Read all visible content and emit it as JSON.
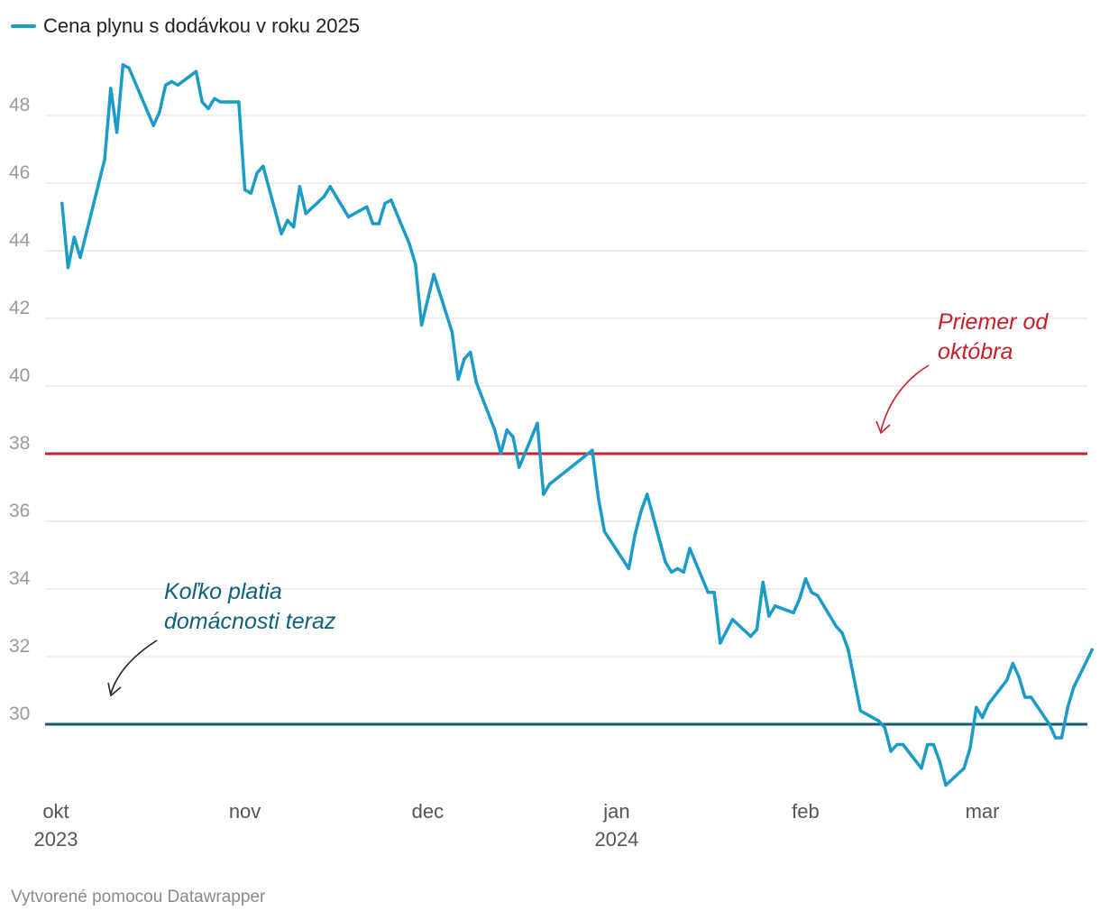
{
  "colors": {
    "series": "#1a9bc8",
    "average_line": "#c8202a",
    "current_line": "#11607a",
    "grid": "#dddddd",
    "tick_text": "#9a9a9a"
  },
  "legend": {
    "label": "Cena plynu s dodávkou v roku 2025"
  },
  "footer": {
    "credit": "Vytvorené pomocou Datawrapper"
  },
  "annotations": {
    "average": {
      "line1": "Priemer od",
      "line2": "októbra"
    },
    "current": {
      "line1": "Koľko platia",
      "line2": "domácnosti teraz"
    }
  },
  "chart_data": {
    "type": "line",
    "title": "",
    "xlabel": "",
    "ylabel": "",
    "ylim": [
      28,
      50
    ],
    "yticks": [
      30,
      32,
      34,
      36,
      38,
      40,
      42,
      44,
      46,
      48
    ],
    "grid": true,
    "legend_position": "top-left",
    "xticks": [
      {
        "date": "2023-10-01",
        "label": "okt",
        "sublabel": "2023"
      },
      {
        "date": "2023-11-01",
        "label": "nov",
        "sublabel": ""
      },
      {
        "date": "2023-12-01",
        "label": "dec",
        "sublabel": ""
      },
      {
        "date": "2024-01-01",
        "label": "jan",
        "sublabel": "2024"
      },
      {
        "date": "2024-02-01",
        "label": "feb",
        "sublabel": ""
      },
      {
        "date": "2024-03-01",
        "label": "mar",
        "sublabel": ""
      }
    ],
    "reference_lines": [
      {
        "name": "Priemer od októbra",
        "y": 38
      },
      {
        "name": "Koľko platia domácnosti teraz",
        "y": 30
      }
    ],
    "series": [
      {
        "name": "Cena plynu s dodávkou v roku 2025",
        "points": [
          [
            "2023-10-02",
            45.4
          ],
          [
            "2023-10-03",
            43.5
          ],
          [
            "2023-10-04",
            44.4
          ],
          [
            "2023-10-05",
            43.8
          ],
          [
            "2023-10-09",
            46.7
          ],
          [
            "2023-10-10",
            48.8
          ],
          [
            "2023-10-11",
            47.5
          ],
          [
            "2023-10-12",
            49.5
          ],
          [
            "2023-10-13",
            49.4
          ],
          [
            "2023-10-17",
            47.7
          ],
          [
            "2023-10-18",
            48.1
          ],
          [
            "2023-10-19",
            48.9
          ],
          [
            "2023-10-20",
            49.0
          ],
          [
            "2023-10-21",
            48.9
          ],
          [
            "2023-10-24",
            49.3
          ],
          [
            "2023-10-25",
            48.4
          ],
          [
            "2023-10-26",
            48.2
          ],
          [
            "2023-10-27",
            48.5
          ],
          [
            "2023-10-28",
            48.4
          ],
          [
            "2023-10-31",
            48.4
          ],
          [
            "2023-11-01",
            45.8
          ],
          [
            "2023-11-02",
            45.7
          ],
          [
            "2023-11-03",
            46.3
          ],
          [
            "2023-11-04",
            46.5
          ],
          [
            "2023-11-07",
            44.5
          ],
          [
            "2023-11-08",
            44.9
          ],
          [
            "2023-11-09",
            44.7
          ],
          [
            "2023-11-10",
            45.9
          ],
          [
            "2023-11-11",
            45.1
          ],
          [
            "2023-11-14",
            45.6
          ],
          [
            "2023-11-15",
            45.9
          ],
          [
            "2023-11-17",
            45.3
          ],
          [
            "2023-11-18",
            45.0
          ],
          [
            "2023-11-21",
            45.3
          ],
          [
            "2023-11-22",
            44.8
          ],
          [
            "2023-11-23",
            44.8
          ],
          [
            "2023-11-24",
            45.4
          ],
          [
            "2023-11-25",
            45.5
          ],
          [
            "2023-11-28",
            44.2
          ],
          [
            "2023-11-29",
            43.6
          ],
          [
            "2023-11-30",
            41.8
          ],
          [
            "2023-12-02",
            43.3
          ],
          [
            "2023-12-05",
            41.6
          ],
          [
            "2023-12-06",
            40.2
          ],
          [
            "2023-12-07",
            40.8
          ],
          [
            "2023-12-08",
            41.0
          ],
          [
            "2023-12-09",
            40.1
          ],
          [
            "2023-12-12",
            38.7
          ],
          [
            "2023-12-13",
            38.0
          ],
          [
            "2023-12-14",
            38.7
          ],
          [
            "2023-12-15",
            38.5
          ],
          [
            "2023-12-16",
            37.6
          ],
          [
            "2023-12-19",
            38.9
          ],
          [
            "2023-12-20",
            36.8
          ],
          [
            "2023-12-21",
            37.1
          ],
          [
            "2023-12-28",
            38.1
          ],
          [
            "2023-12-29",
            36.7
          ],
          [
            "2023-12-30",
            35.7
          ],
          [
            "2024-01-03",
            34.6
          ],
          [
            "2024-01-04",
            35.6
          ],
          [
            "2024-01-05",
            36.3
          ],
          [
            "2024-01-06",
            36.8
          ],
          [
            "2024-01-09",
            34.8
          ],
          [
            "2024-01-10",
            34.5
          ],
          [
            "2024-01-11",
            34.6
          ],
          [
            "2024-01-12",
            34.5
          ],
          [
            "2024-01-13",
            35.2
          ],
          [
            "2024-01-16",
            33.9
          ],
          [
            "2024-01-17",
            33.9
          ],
          [
            "2024-01-18",
            32.4
          ],
          [
            "2024-01-20",
            33.1
          ],
          [
            "2024-01-23",
            32.6
          ],
          [
            "2024-01-24",
            32.8
          ],
          [
            "2024-01-25",
            34.2
          ],
          [
            "2024-01-26",
            33.2
          ],
          [
            "2024-01-27",
            33.5
          ],
          [
            "2024-01-30",
            33.3
          ],
          [
            "2024-01-31",
            33.7
          ],
          [
            "2024-02-01",
            34.3
          ],
          [
            "2024-02-02",
            33.9
          ],
          [
            "2024-02-03",
            33.8
          ],
          [
            "2024-02-06",
            32.9
          ],
          [
            "2024-02-07",
            32.7
          ],
          [
            "2024-02-08",
            32.2
          ],
          [
            "2024-02-10",
            30.4
          ],
          [
            "2024-02-13",
            30.1
          ],
          [
            "2024-02-14",
            29.9
          ],
          [
            "2024-02-15",
            29.2
          ],
          [
            "2024-02-16",
            29.4
          ],
          [
            "2024-02-17",
            29.4
          ],
          [
            "2024-02-20",
            28.7
          ],
          [
            "2024-02-21",
            29.4
          ],
          [
            "2024-02-22",
            29.4
          ],
          [
            "2024-02-23",
            28.9
          ],
          [
            "2024-02-24",
            28.2
          ],
          [
            "2024-02-27",
            28.7
          ],
          [
            "2024-02-28",
            29.3
          ],
          [
            "2024-02-29",
            30.5
          ],
          [
            "2024-03-01",
            30.2
          ],
          [
            "2024-03-02",
            30.6
          ],
          [
            "2024-03-05",
            31.3
          ],
          [
            "2024-03-06",
            31.8
          ],
          [
            "2024-03-07",
            31.4
          ],
          [
            "2024-03-08",
            30.8
          ],
          [
            "2024-03-09",
            30.8
          ],
          [
            "2024-03-12",
            30.0
          ],
          [
            "2024-03-13",
            29.6
          ],
          [
            "2024-03-14",
            29.6
          ],
          [
            "2024-03-15",
            30.5
          ],
          [
            "2024-03-16",
            31.1
          ],
          [
            "2024-03-19",
            32.2
          ]
        ]
      }
    ]
  }
}
